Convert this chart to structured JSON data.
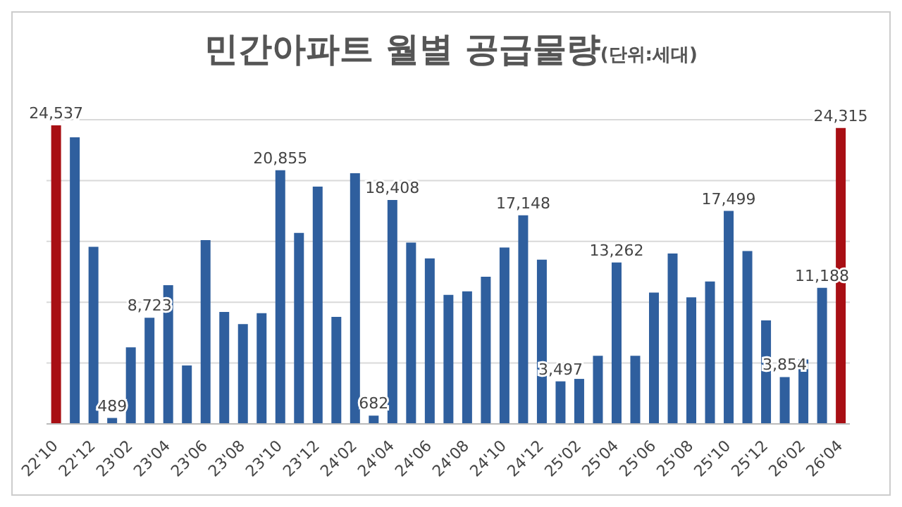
{
  "chart_data": {
    "type": "bar",
    "title": "민간아파트 월별 공급물량",
    "subtitle": "(단위:세대)",
    "categories": [
      "22'10",
      null,
      "22'12",
      null,
      "23'02",
      null,
      "23'04",
      null,
      "23'06",
      null,
      "23'08",
      null,
      "23'10",
      null,
      "23'12",
      null,
      "24'02",
      null,
      "24'04",
      null,
      "24'06",
      null,
      "24'08",
      null,
      "24'10",
      null,
      "24'12",
      null,
      "25'02",
      null,
      "25'04",
      null,
      "25'06",
      null,
      "25'08",
      null,
      "25'10",
      null,
      "25'12",
      null,
      "26'02",
      null,
      "26'04"
    ],
    "values": [
      24537,
      23550,
      14560,
      489,
      6300,
      8723,
      11400,
      4800,
      15100,
      9200,
      8200,
      9100,
      20855,
      15700,
      19500,
      8800,
      20600,
      682,
      18408,
      14900,
      13600,
      10600,
      10900,
      12100,
      14500,
      17148,
      13500,
      3497,
      3700,
      5600,
      13262,
      5600,
      10800,
      14000,
      10400,
      11700,
      17499,
      14200,
      8500,
      3854,
      5300,
      11188,
      24315
    ],
    "colors": [
      "#a80f14",
      "#2f5f9e",
      "#2f5f9e",
      "#2f5f9e",
      "#2f5f9e",
      "#2f5f9e",
      "#2f5f9e",
      "#2f5f9e",
      "#2f5f9e",
      "#2f5f9e",
      "#2f5f9e",
      "#2f5f9e",
      "#2f5f9e",
      "#2f5f9e",
      "#2f5f9e",
      "#2f5f9e",
      "#2f5f9e",
      "#2f5f9e",
      "#2f5f9e",
      "#2f5f9e",
      "#2f5f9e",
      "#2f5f9e",
      "#2f5f9e",
      "#2f5f9e",
      "#2f5f9e",
      "#2f5f9e",
      "#2f5f9e",
      "#2f5f9e",
      "#2f5f9e",
      "#2f5f9e",
      "#2f5f9e",
      "#2f5f9e",
      "#2f5f9e",
      "#2f5f9e",
      "#2f5f9e",
      "#2f5f9e",
      "#2f5f9e",
      "#2f5f9e",
      "#2f5f9e",
      "#2f5f9e",
      "#2f5f9e",
      "#2f5f9e",
      "#a80f14"
    ],
    "value_labels": [
      "24,537",
      null,
      null,
      "489",
      null,
      "8,723",
      null,
      null,
      null,
      null,
      null,
      null,
      "20,855",
      null,
      null,
      null,
      null,
      "682",
      "18,408",
      null,
      null,
      null,
      null,
      null,
      null,
      "17,148",
      null,
      "3,497",
      null,
      null,
      "13,262",
      null,
      null,
      null,
      null,
      null,
      "17,499",
      null,
      null,
      "3,854",
      null,
      "11,188",
      "24,315"
    ],
    "ylim": [
      0,
      25000
    ],
    "yticks": [
      {
        "value": 0,
        "label": null
      },
      {
        "value": 5000,
        "label": null
      },
      {
        "value": 10000,
        "label": null
      },
      {
        "value": 15000,
        "label": null
      },
      {
        "value": 20000,
        "label": null
      },
      {
        "value": 25000,
        "label": null
      }
    ],
    "tick_labels": "x",
    "grid": "y",
    "legend": false
  }
}
